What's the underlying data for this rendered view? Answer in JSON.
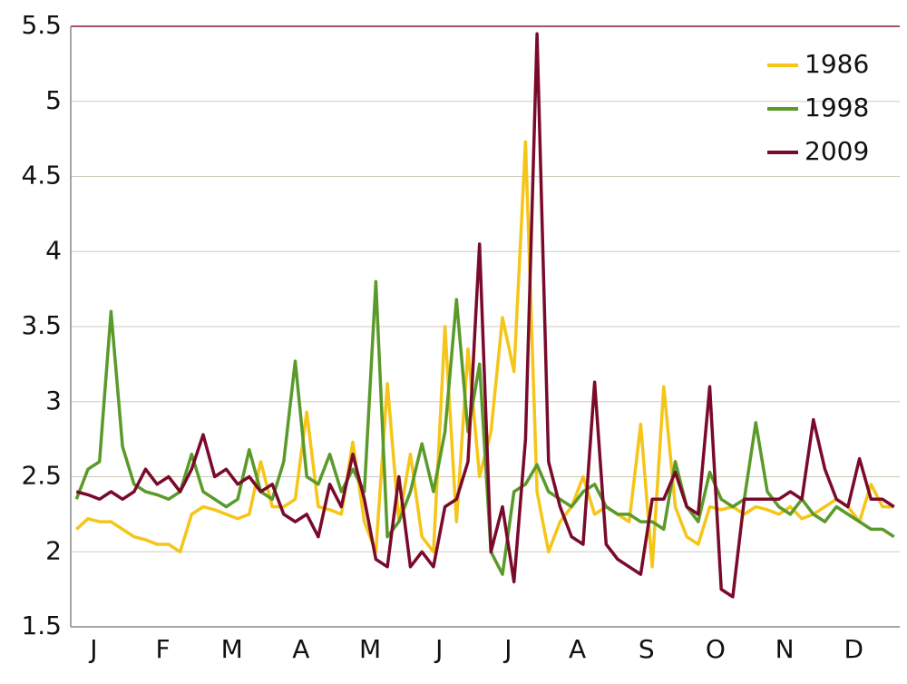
{
  "chart_data": {
    "type": "line",
    "categories": [
      null,
      null,
      "J",
      null,
      null,
      null,
      null,
      null,
      "F",
      null,
      null,
      null,
      null,
      null,
      "M",
      null,
      null,
      null,
      null,
      null,
      "A",
      null,
      null,
      null,
      null,
      null,
      "M",
      null,
      null,
      null,
      null,
      null,
      "J",
      null,
      null,
      null,
      null,
      null,
      "J",
      null,
      null,
      null,
      null,
      null,
      "A",
      null,
      null,
      null,
      null,
      null,
      "S",
      null,
      null,
      null,
      null,
      null,
      "O",
      null,
      null,
      null,
      null,
      null,
      "N",
      null,
      null,
      null,
      null,
      null,
      "D",
      null,
      null,
      null
    ],
    "series": [
      {
        "name": "1986",
        "color": "#f5c518",
        "values": [
          2.15,
          2.22,
          2.2,
          2.2,
          2.15,
          2.1,
          2.08,
          2.05,
          2.05,
          2.0,
          2.25,
          2.3,
          2.28,
          2.25,
          2.22,
          2.25,
          2.6,
          2.3,
          2.3,
          2.35,
          2.93,
          2.3,
          2.28,
          2.25,
          2.73,
          2.2,
          2.0,
          3.12,
          2.2,
          2.65,
          2.1,
          2.0,
          3.5,
          2.2,
          3.35,
          2.5,
          2.8,
          3.56,
          3.2,
          4.73,
          2.4,
          2.0,
          2.2,
          2.3,
          2.5,
          2.25,
          2.3,
          2.25,
          2.2,
          2.85,
          1.9,
          3.1,
          2.3,
          2.1,
          2.05,
          2.3,
          2.28,
          2.3,
          2.25,
          2.3,
          2.28,
          2.25,
          2.3,
          2.22,
          2.25,
          2.3,
          2.35,
          2.3,
          2.2,
          2.45,
          2.3,
          2.3
        ]
      },
      {
        "name": "1998",
        "color": "#5a9a2a",
        "values": [
          2.35,
          2.55,
          2.6,
          3.6,
          2.7,
          2.45,
          2.4,
          2.38,
          2.35,
          2.4,
          2.65,
          2.4,
          2.35,
          2.3,
          2.35,
          2.68,
          2.4,
          2.35,
          2.6,
          3.27,
          2.5,
          2.45,
          2.65,
          2.4,
          2.55,
          2.4,
          3.8,
          2.1,
          2.2,
          2.4,
          2.72,
          2.4,
          2.8,
          3.68,
          2.8,
          3.25,
          2.0,
          1.85,
          2.4,
          2.45,
          2.58,
          2.4,
          2.35,
          2.3,
          2.4,
          2.45,
          2.3,
          2.25,
          2.25,
          2.2,
          2.2,
          2.15,
          2.6,
          2.3,
          2.2,
          2.53,
          2.35,
          2.3,
          2.35,
          2.86,
          2.4,
          2.3,
          2.25,
          2.35,
          2.25,
          2.2,
          2.3,
          2.25,
          2.2,
          2.15,
          2.15,
          2.1
        ]
      },
      {
        "name": "2009",
        "color": "#7a0a2a",
        "values": [
          2.4,
          2.38,
          2.35,
          2.4,
          2.35,
          2.4,
          2.55,
          2.45,
          2.5,
          2.4,
          2.55,
          2.78,
          2.5,
          2.55,
          2.45,
          2.5,
          2.4,
          2.45,
          2.25,
          2.2,
          2.25,
          2.1,
          2.45,
          2.3,
          2.65,
          2.35,
          1.95,
          1.9,
          2.5,
          1.9,
          2.0,
          1.9,
          2.3,
          2.35,
          2.6,
          4.05,
          2.0,
          2.3,
          1.8,
          2.75,
          5.45,
          2.6,
          2.3,
          2.1,
          2.05,
          3.13,
          2.05,
          1.95,
          1.9,
          1.85,
          2.35,
          2.35,
          2.53,
          2.3,
          2.25,
          3.1,
          1.75,
          1.7,
          2.35,
          2.35,
          2.35,
          2.35,
          2.4,
          2.35,
          2.88,
          2.55,
          2.35,
          2.3,
          2.62,
          2.35,
          2.35,
          2.3
        ]
      }
    ],
    "ylim": [
      1.5,
      5.5
    ],
    "yticks": [
      1.5,
      2,
      2.5,
      3,
      3.5,
      4,
      4.5,
      5,
      5.5
    ],
    "grid": true,
    "legend": "top-right"
  }
}
